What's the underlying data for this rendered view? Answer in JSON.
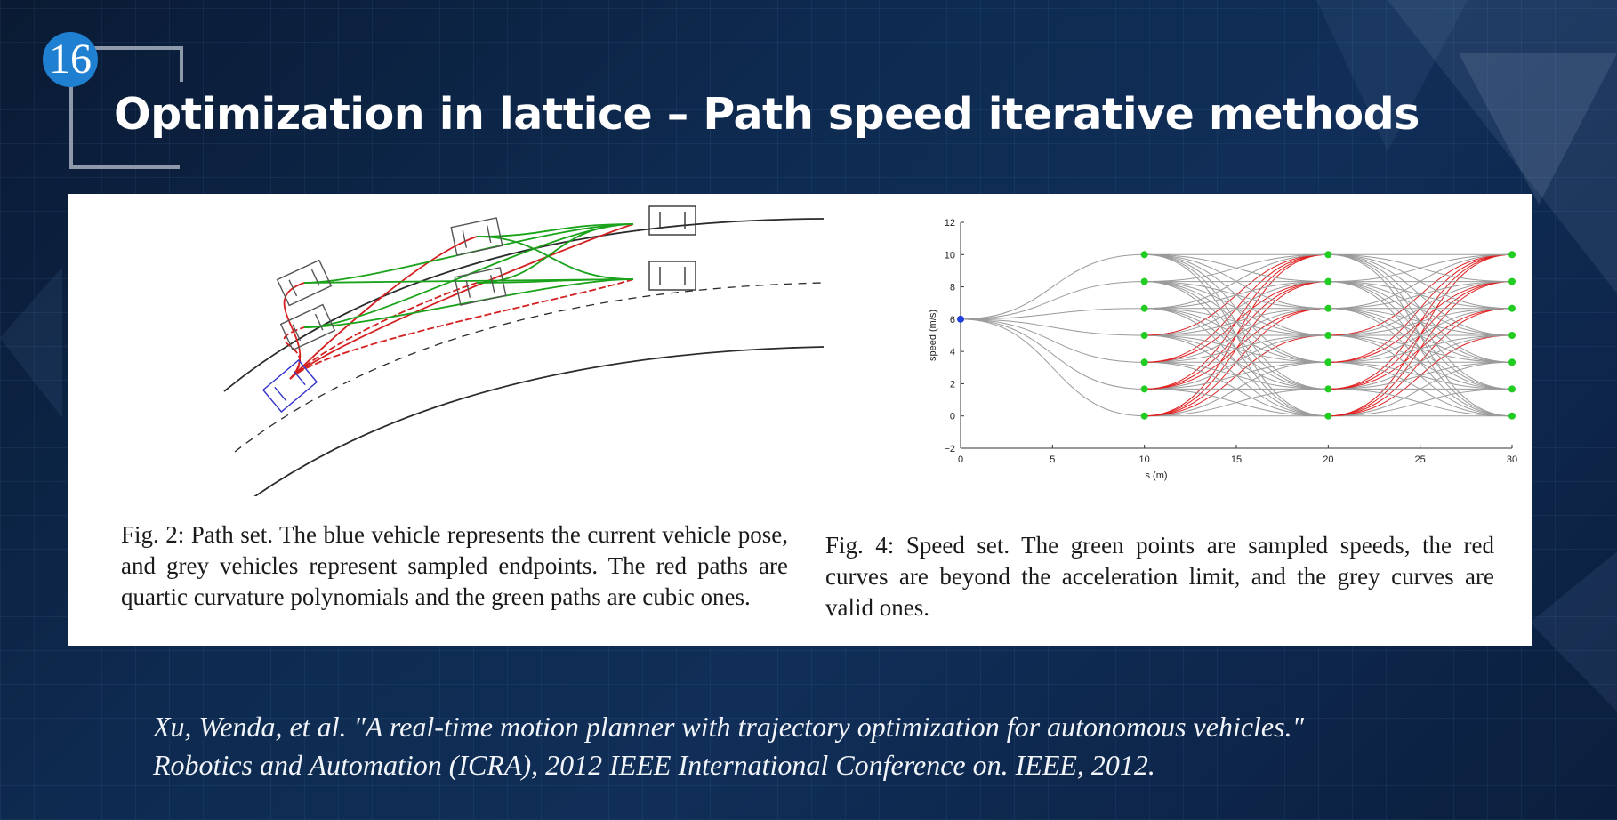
{
  "slide": {
    "number": "16",
    "title": "Optimization in lattice – Path speed iterative methods"
  },
  "figure_left": {
    "caption": "Fig. 2: Path set. The blue vehicle represents the current vehicle pose, and grey vehicles represent sampled endpoints. The red paths are quartic curvature polynomials and the green paths are cubic ones.",
    "colors": {
      "current_vehicle": "#3333cc",
      "quartic_paths": "#d42020",
      "cubic_paths": "#1aa31a",
      "road": "#333333"
    }
  },
  "figure_right": {
    "caption": "Fig. 4: Speed set. The green points are sampled speeds, the red curves are beyond the acceleration limit, and the grey curves are valid ones.",
    "chart_data": {
      "type": "line",
      "xlabel": "s (m)",
      "ylabel": "speed (m/s)",
      "xlim": [
        0,
        30
      ],
      "ylim": [
        -2,
        12
      ],
      "x_ticks": [
        "0",
        "5",
        "10",
        "15",
        "20",
        "25",
        "30"
      ],
      "y_ticks": [
        "−2",
        "0",
        "2",
        "4",
        "6",
        "8",
        "10",
        "12"
      ],
      "start_point": {
        "x": 0,
        "y": 6
      },
      "sample_stations_x": [
        10,
        20,
        30
      ],
      "sample_speeds": [
        0,
        1.67,
        3.33,
        5,
        6.67,
        8.33,
        10
      ],
      "colors": {
        "sampled_points": "#22cc22",
        "start_point": "#1f3fe0",
        "infeasible_curves": "#e02020",
        "valid_curves": "#9a9a9a"
      }
    }
  },
  "citation": {
    "line1": "Xu, Wenda, et al. \"A real-time motion planner with trajectory optimization for autonomous vehicles.\"",
    "line2": "Robotics and Automation (ICRA), 2012 IEEE International Conference on. IEEE, 2012."
  }
}
